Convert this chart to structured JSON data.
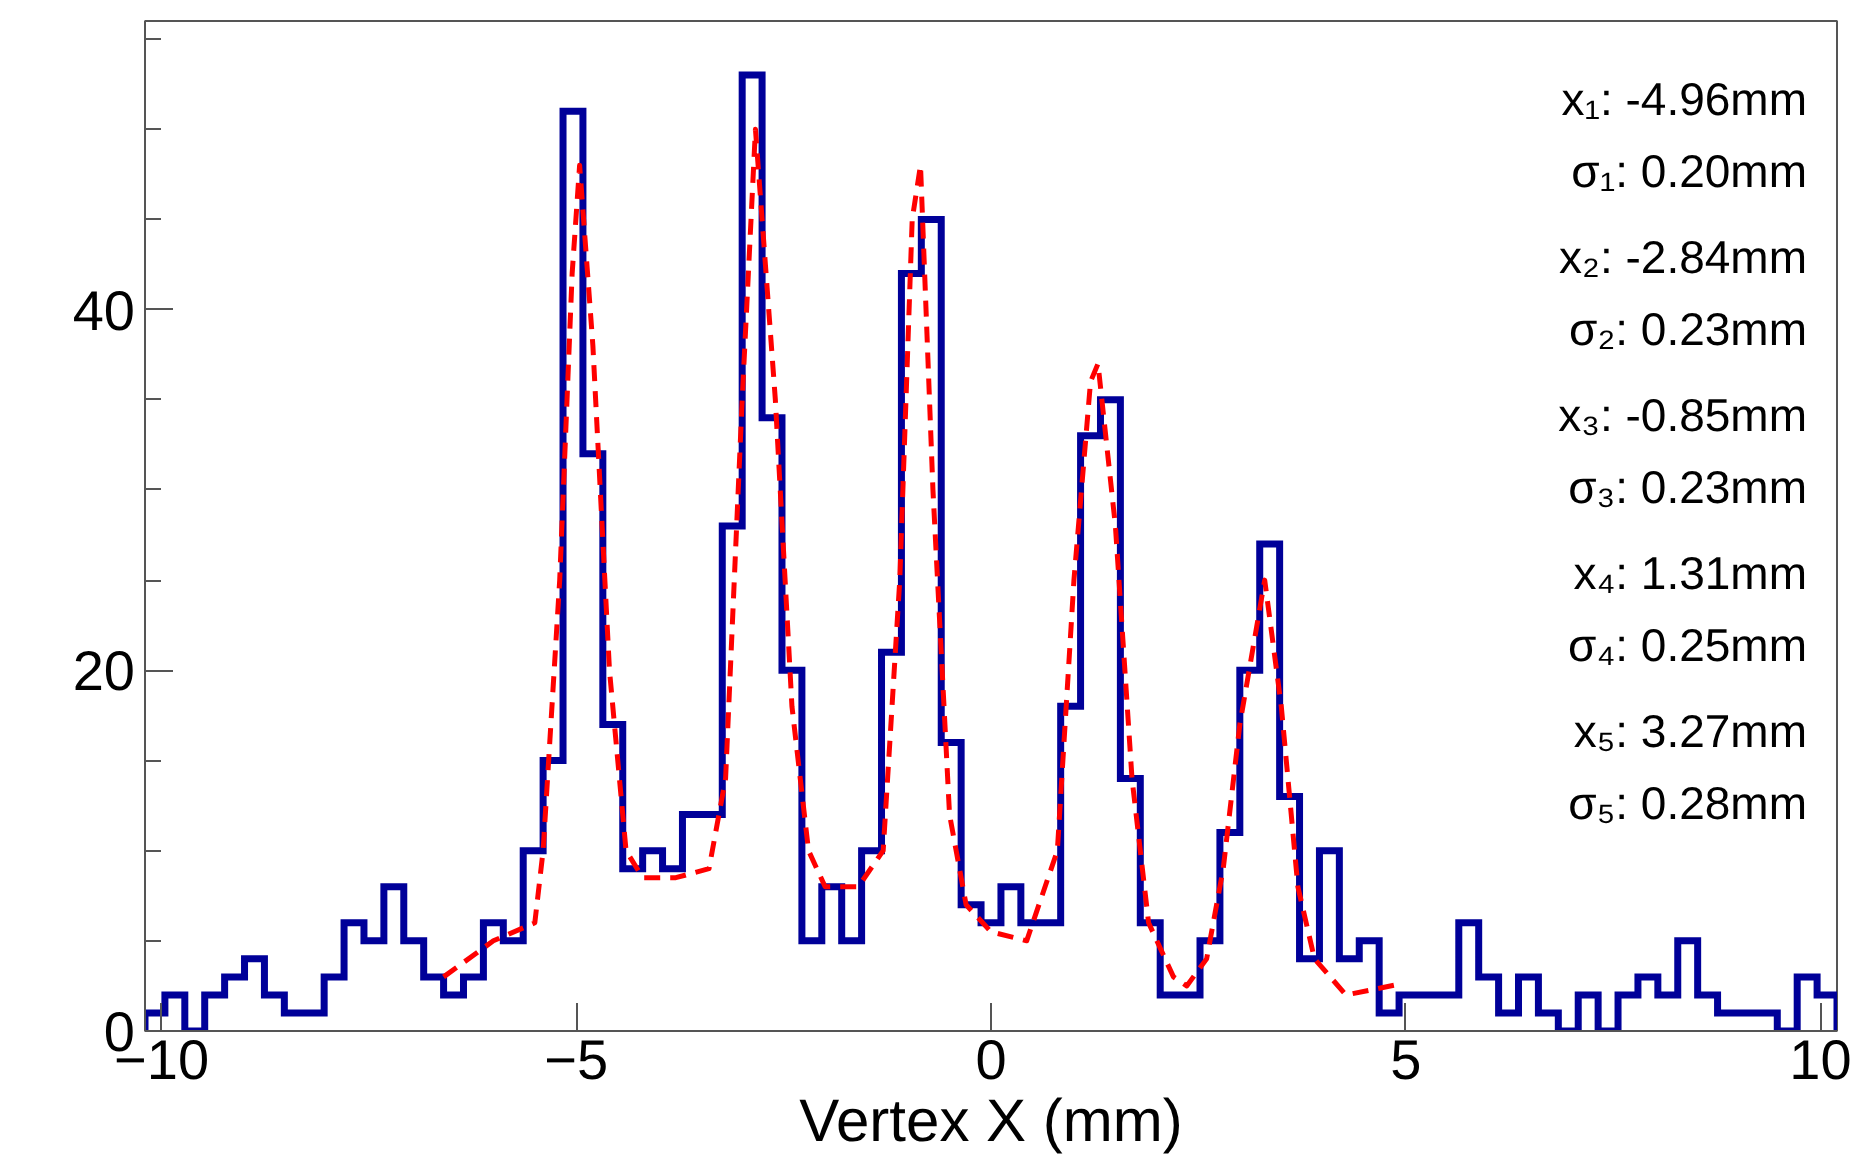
{
  "chart_data": {
    "type": "histogram",
    "xlabel": "Vertex X (mm)",
    "xlim": [
      -10.2,
      10.2
    ],
    "ylim": [
      0,
      56
    ],
    "xticks": [
      -10,
      -5,
      0,
      5,
      10
    ],
    "yticks": [
      0,
      {
        "value": 5,
        "label": null
      },
      {
        "value": 10,
        "label": null
      },
      {
        "value": 15,
        "label": null
      },
      20,
      {
        "value": 25,
        "label": null
      },
      {
        "value": 30,
        "label": null
      },
      {
        "value": 35,
        "label": null
      },
      40,
      {
        "value": 45,
        "label": null
      },
      {
        "value": 50,
        "label": null
      },
      {
        "value": 55,
        "label": null
      }
    ],
    "grid": false,
    "annotations": [
      "x₁: -4.96mm",
      "σ₁: 0.20mm",
      "x₂: -2.84mm",
      "σ₂: 0.23mm",
      "x₃: -0.85mm",
      "σ₃: 0.23mm",
      "x₄: 1.31mm",
      "σ₄: 0.25mm",
      "x₅: 3.27mm",
      "σ₅: 0.28mm"
    ],
    "series": [
      {
        "color": "#000099",
        "bins": [
          -10.2,
          -9.96,
          -9.72,
          -9.48,
          -9.24,
          -9.0,
          -8.76,
          -8.52,
          -8.28,
          -8.04,
          -7.8,
          -7.56,
          -7.32,
          -7.08,
          -6.84,
          -6.6,
          -6.36,
          -6.12,
          -5.88,
          -5.64,
          -5.4,
          -5.16,
          -4.92,
          -4.68,
          -4.44,
          -4.2,
          -3.96,
          -3.72,
          -3.48,
          -3.24,
          -3.0,
          -2.76,
          -2.52,
          -2.28,
          -2.04,
          -1.8,
          -1.56,
          -1.32,
          -1.08,
          -0.84,
          -0.6,
          -0.36,
          -0.12,
          0.12,
          0.36,
          0.6,
          0.84,
          1.08,
          1.32,
          1.56,
          1.8,
          2.04,
          2.28,
          2.52,
          2.76,
          3.0,
          3.24,
          3.48,
          3.72,
          3.96,
          4.2,
          4.44,
          4.68,
          4.92,
          5.16,
          5.4,
          5.64,
          5.88,
          6.12,
          6.36,
          6.6,
          6.84,
          7.08,
          7.32,
          7.56,
          7.8,
          8.04,
          8.28,
          8.52,
          8.76,
          9.0,
          9.24,
          9.48,
          9.72,
          9.96,
          10.2
        ],
        "values": [
          1,
          2,
          0,
          2,
          3,
          4,
          2,
          1,
          1,
          3,
          6,
          5,
          8,
          5,
          3,
          2,
          3,
          6,
          5,
          10,
          15,
          51,
          32,
          17,
          9,
          10,
          9,
          12,
          12,
          28,
          53,
          34,
          20,
          5,
          8,
          5,
          10,
          21,
          42,
          45,
          16,
          7,
          6,
          8,
          6,
          6,
          18,
          33,
          35,
          14,
          6,
          2,
          2,
          5,
          11,
          20,
          27,
          13,
          4,
          10,
          4,
          5,
          1,
          2,
          2,
          2,
          6,
          3,
          1,
          3,
          1,
          0,
          2,
          0,
          2,
          3,
          2,
          5,
          2,
          1,
          1,
          1,
          0,
          3,
          2
        ]
      },
      {
        "type": "line",
        "color": "#ff0000",
        "line_style": "dashed",
        "x": [
          -6.6,
          -6.0,
          -5.5,
          -5.4,
          -5.2,
          -5.05,
          -4.96,
          -4.8,
          -4.6,
          -4.4,
          -4.2,
          -3.8,
          -3.4,
          -3.2,
          -3.0,
          -2.84,
          -2.6,
          -2.4,
          -2.2,
          -2.0,
          -1.6,
          -1.3,
          -1.1,
          -0.95,
          -0.85,
          -0.7,
          -0.5,
          -0.3,
          0.0,
          0.43,
          0.8,
          1.0,
          1.2,
          1.29,
          1.5,
          1.7,
          1.9,
          2.2,
          2.36,
          2.6,
          2.8,
          3.0,
          3.3,
          3.5,
          3.7,
          3.9,
          4.28,
          4.93
        ],
        "values": [
          3,
          5,
          6,
          10,
          25,
          42,
          48,
          38,
          20,
          10,
          8.5,
          8.5,
          9,
          14,
          35,
          50,
          35,
          18,
          10,
          8,
          8,
          10,
          25,
          45,
          48,
          30,
          12,
          7,
          5.5,
          5,
          10,
          25,
          36,
          37,
          28,
          14,
          6,
          3,
          2.5,
          4,
          9,
          17,
          25,
          18,
          8,
          4,
          2,
          2.6
        ]
      }
    ]
  }
}
